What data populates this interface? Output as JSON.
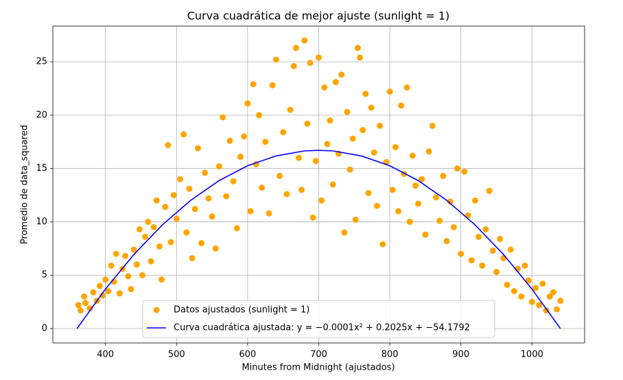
{
  "chart_data": {
    "type": "scatter",
    "title": "Curva cuadrática de mejor ajuste (sunlight = 1)",
    "xlabel": "Minutes from Midnight (ajustados)",
    "ylabel": "Promedio de data_squared",
    "xlim": [
      326,
      1074
    ],
    "ylim": [
      -1.35,
      28.35
    ],
    "xticks": [
      400,
      500,
      600,
      700,
      800,
      900,
      1000
    ],
    "yticks": [
      0,
      5,
      10,
      15,
      20,
      25
    ],
    "grid": true,
    "legend": "lower center",
    "series": [
      {
        "name": "Datos ajustados (sunlight = 1)",
        "type": "scatter",
        "color": "#ffa500",
        "x": [
          362,
          365,
          370,
          372,
          378,
          383,
          388,
          392,
          396,
          400,
          404,
          408,
          412,
          415,
          420,
          424,
          428,
          432,
          436,
          440,
          444,
          448,
          452,
          456,
          460,
          464,
          468,
          472,
          476,
          479,
          484,
          488,
          492,
          496,
          500,
          505,
          510,
          514,
          518,
          522,
          526,
          530,
          535,
          540,
          545,
          550,
          555,
          560,
          565,
          570,
          575,
          580,
          585,
          590,
          595,
          600,
          604,
          608,
          612,
          616,
          620,
          625,
          630,
          635,
          640,
          645,
          650,
          655,
          660,
          665,
          668,
          672,
          676,
          680,
          684,
          688,
          692,
          696,
          700,
          704,
          708,
          712,
          716,
          720,
          724,
          728,
          732,
          736,
          740,
          744,
          748,
          752,
          755,
          758,
          762,
          766,
          770,
          774,
          778,
          782,
          786,
          790,
          795,
          800,
          804,
          808,
          812,
          816,
          820,
          824,
          828,
          832,
          836,
          840,
          845,
          850,
          855,
          860,
          865,
          870,
          875,
          880,
          885,
          890,
          895,
          900,
          905,
          910,
          915,
          920,
          925,
          930,
          935,
          940,
          945,
          950,
          955,
          960,
          965,
          970,
          975,
          980,
          985,
          990,
          995,
          1000,
          1005,
          1010,
          1015,
          1020,
          1025,
          1030,
          1035,
          1040
        ],
        "values": [
          2.2,
          1.7,
          3.0,
          2.4,
          1.9,
          3.4,
          2.6,
          4.0,
          3.1,
          4.6,
          3.5,
          5.9,
          4.4,
          7.0,
          3.3,
          5.6,
          6.8,
          4.9,
          3.7,
          7.4,
          6.0,
          9.3,
          5.0,
          8.6,
          10.0,
          6.3,
          9.5,
          12.0,
          7.7,
          4.6,
          11.4,
          17.2,
          8.1,
          12.5,
          10.3,
          14.0,
          18.2,
          9.0,
          13.1,
          6.6,
          11.2,
          16.9,
          8.0,
          14.6,
          12.2,
          10.5,
          7.5,
          15.2,
          19.8,
          12.4,
          17.6,
          13.8,
          9.4,
          16.1,
          18.0,
          21.1,
          11.0,
          22.9,
          15.4,
          20.0,
          13.2,
          17.5,
          10.8,
          22.8,
          25.2,
          14.3,
          18.4,
          12.6,
          20.5,
          24.6,
          26.3,
          16.0,
          13.0,
          27.0,
          19.2,
          24.9,
          10.4,
          15.7,
          25.4,
          12.0,
          22.6,
          17.3,
          19.5,
          13.5,
          23.1,
          16.4,
          23.8,
          9.0,
          20.3,
          14.9,
          17.8,
          10.2,
          26.3,
          25.4,
          18.6,
          22.0,
          12.7,
          20.7,
          16.5,
          11.5,
          19.0,
          7.9,
          15.6,
          22.2,
          13.0,
          17.0,
          11.0,
          20.9,
          14.5,
          22.6,
          10.0,
          16.2,
          13.4,
          11.7,
          14.0,
          8.8,
          16.6,
          19.0,
          12.3,
          10.1,
          14.3,
          8.2,
          11.9,
          9.5,
          15.0,
          7.0,
          14.7,
          10.6,
          6.4,
          12.0,
          8.6,
          5.9,
          9.3,
          12.9,
          7.3,
          5.3,
          8.4,
          6.6,
          4.1,
          7.4,
          3.5,
          5.6,
          3.0,
          5.9,
          4.5,
          2.5,
          3.8,
          2.2,
          4.2,
          1.7,
          3.0,
          3.4,
          1.8,
          2.6
        ]
      },
      {
        "name": "Curva cuadrática ajustada: y = −0.0001x² + 0.2025x + −54.1792",
        "type": "line",
        "color": "#0000ff",
        "x": [
          360,
          400,
          440,
          480,
          520,
          560,
          600,
          640,
          680,
          700,
          720,
          760,
          800,
          840,
          880,
          920,
          960,
          1000,
          1040
        ],
        "values": [
          0,
          3.7,
          6.94,
          9.71,
          12.02,
          13.87,
          15.26,
          16.18,
          16.65,
          16.7,
          16.65,
          16.18,
          15.26,
          13.87,
          12.02,
          9.71,
          6.94,
          3.7,
          0
        ]
      }
    ]
  }
}
